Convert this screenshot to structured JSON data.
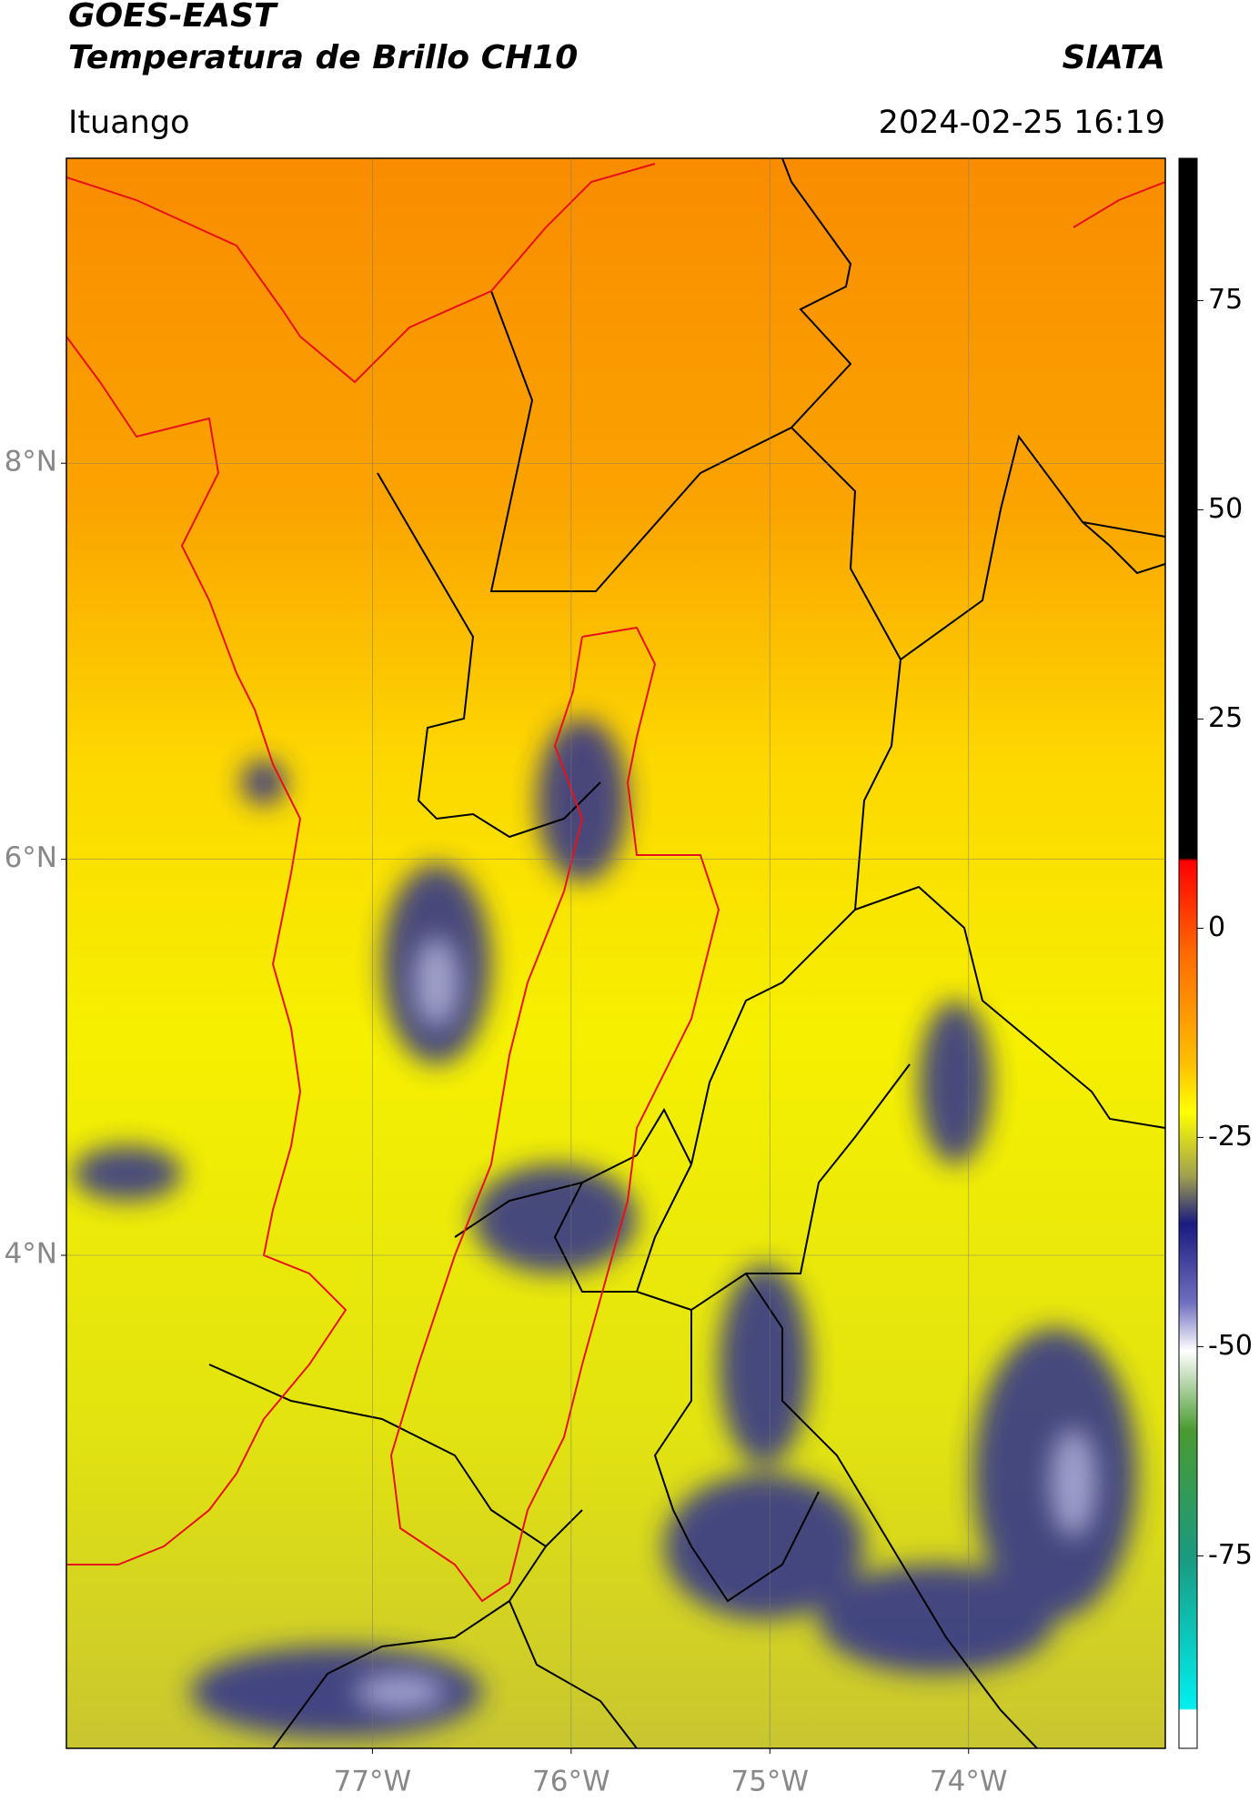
{
  "header": {
    "title": "GOES-EAST",
    "subtitle": "Temperatura de Brillo CH10",
    "source": "SIATA",
    "location": "Ituango",
    "datetime": "2024-02-25 16:19"
  },
  "map": {
    "xlim": [
      -78.54,
      -73.01
    ],
    "ylim": [
      1.51,
      9.54
    ],
    "grid": true,
    "xticks": [
      {
        "value": -77,
        "label": "77°W"
      },
      {
        "value": -76,
        "label": "76°W"
      },
      {
        "value": -75,
        "label": "75°W"
      },
      {
        "value": -74,
        "label": "74°W"
      }
    ],
    "yticks": [
      {
        "value": 8,
        "label": "8°N"
      },
      {
        "value": 6,
        "label": "6°N"
      },
      {
        "value": 4,
        "label": "4°N"
      }
    ]
  },
  "colorbar": {
    "lim": [
      -98,
      92
    ],
    "ticks": [
      75,
      50,
      25,
      0,
      -25,
      -50,
      -75
    ]
  }
}
